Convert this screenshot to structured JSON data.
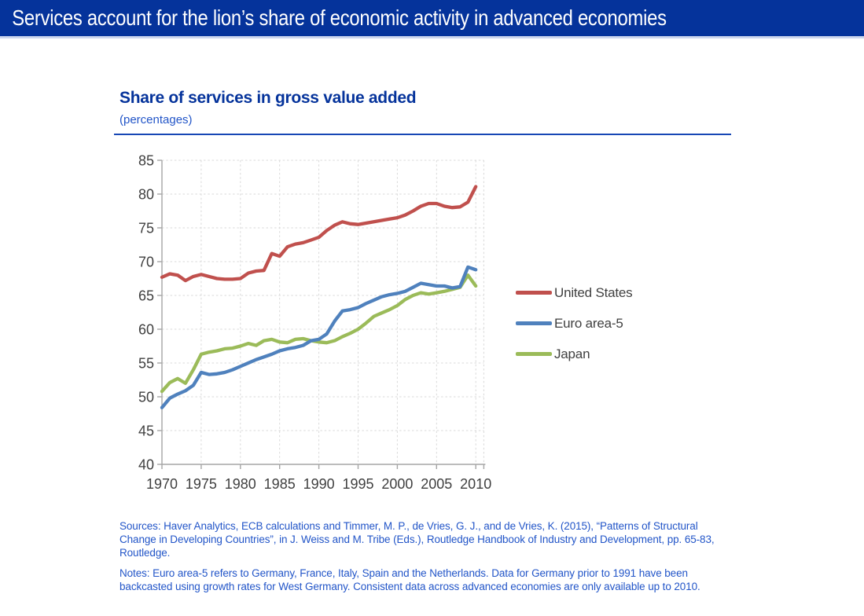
{
  "header": {
    "title": "Services account for the lion’s share of economic activity in advanced economies"
  },
  "chart": {
    "title": "Share of services in gross value added",
    "subtitle": "(percentages)"
  },
  "footnotes": {
    "sources": "Sources: Haver Analytics, ECB calculations and Timmer, M. P., de Vries, G. J., and de Vries, K. (2015), “Patterns of Structural Change in Developing Countries”, in J. Weiss and M. Tribe (Eds.), Routledge Handbook of Industry and Development, pp. 65-83, Routledge.",
    "notes": "Notes: Euro area-5 refers to Germany, France, Italy, Spain and the Netherlands. Data for Germany prior to 1991 have been backcasted using growth rates for West Germany. Consistent data across advanced economies are only available up to 2010."
  },
  "colors": {
    "header_background": "#05339b",
    "title_blue": "#05339b",
    "note_blue": "#2255c8",
    "axis_line": "#a6a6a6",
    "gridline": "#d9d9d9",
    "tick_label": "#3f3f3f",
    "legend_text": "#404040"
  },
  "chart_data": {
    "type": "line",
    "title": "Share of services in gross value added",
    "unit": "percentages",
    "xlabel": "",
    "ylabel": "",
    "ylim": [
      40,
      85
    ],
    "ytick_step": 5,
    "xticks": [
      1970,
      1975,
      1980,
      1985,
      1990,
      1995,
      2000,
      2005,
      2010
    ],
    "grid": true,
    "grid_style": "dashed",
    "legend_position": "right",
    "x": [
      1970,
      1971,
      1972,
      1973,
      1974,
      1975,
      1976,
      1977,
      1978,
      1979,
      1980,
      1981,
      1982,
      1983,
      1984,
      1985,
      1986,
      1987,
      1988,
      1989,
      1990,
      1991,
      1992,
      1993,
      1994,
      1995,
      1996,
      1997,
      1998,
      1999,
      2000,
      2001,
      2002,
      2003,
      2004,
      2005,
      2006,
      2007,
      2008,
      2009,
      2010
    ],
    "series": [
      {
        "name": "United States",
        "color": "#C0504D",
        "values": [
          67.7,
          68.2,
          68.0,
          67.2,
          67.8,
          68.1,
          67.8,
          67.5,
          67.4,
          67.4,
          67.5,
          68.3,
          68.6,
          68.7,
          71.2,
          70.8,
          72.2,
          72.6,
          72.8,
          73.2,
          73.6,
          74.6,
          75.4,
          75.9,
          75.6,
          75.5,
          75.7,
          75.9,
          76.1,
          76.3,
          76.5,
          76.9,
          77.5,
          78.2,
          78.6,
          78.6,
          78.2,
          78.0,
          78.1,
          78.8,
          81.1
        ]
      },
      {
        "name": "Euro area-5",
        "color": "#4F81BD",
        "values": [
          48.4,
          49.8,
          50.4,
          50.9,
          51.7,
          53.6,
          53.3,
          53.4,
          53.6,
          54.0,
          54.5,
          55.0,
          55.5,
          55.9,
          56.3,
          56.8,
          57.1,
          57.3,
          57.6,
          58.3,
          58.5,
          59.3,
          61.2,
          62.7,
          62.9,
          63.2,
          63.8,
          64.3,
          64.8,
          65.1,
          65.3,
          65.6,
          66.2,
          66.8,
          66.6,
          66.4,
          66.4,
          66.1,
          66.3,
          69.2,
          68.8
        ]
      },
      {
        "name": "Japan",
        "color": "#9BBB59",
        "values": [
          50.8,
          52.1,
          52.7,
          52.0,
          54.0,
          56.3,
          56.6,
          56.8,
          57.1,
          57.2,
          57.5,
          57.9,
          57.6,
          58.3,
          58.5,
          58.1,
          58.0,
          58.5,
          58.6,
          58.3,
          58.1,
          58.0,
          58.3,
          58.9,
          59.4,
          60.0,
          60.9,
          61.9,
          62.4,
          62.9,
          63.5,
          64.4,
          65.0,
          65.4,
          65.2,
          65.4,
          65.6,
          65.9,
          66.2,
          68.0,
          66.4
        ]
      }
    ]
  }
}
